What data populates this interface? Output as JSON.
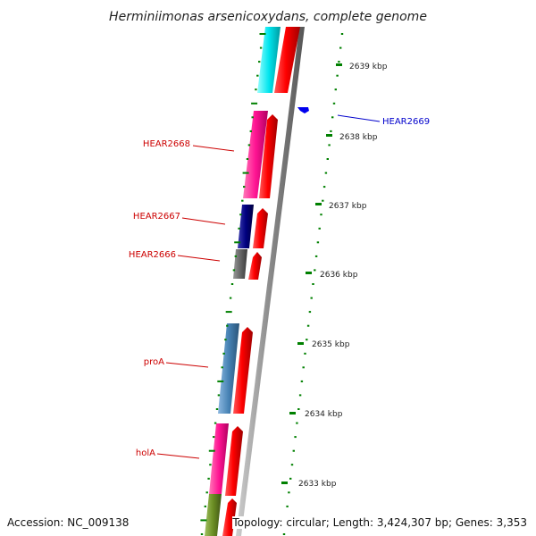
{
  "title": "Herminiimonas arsenicoxydans, complete genome",
  "footer": {
    "accession": "Accession: NC_009138",
    "topology": "Topology: circular; Length: 3,424,307 bp; Genes: 3,353"
  },
  "ticks": [
    {
      "label": "2639 kbp",
      "value": 2639
    },
    {
      "label": "2638 kbp",
      "value": 2638
    },
    {
      "label": "2637 kbp",
      "value": 2637
    },
    {
      "label": "2636 kbp",
      "value": 2636
    },
    {
      "label": "2635 kbp",
      "value": 2635
    },
    {
      "label": "2634 kbp",
      "value": 2634
    },
    {
      "label": "2633 kbp",
      "value": 2633
    }
  ],
  "genes": [
    {
      "label": "HEAR2669",
      "color": "#0000cc"
    },
    {
      "label": "HEAR2668",
      "color": "#cc0000"
    },
    {
      "label": "HEAR2667",
      "color": "#cc0000"
    },
    {
      "label": "HEAR2666",
      "color": "#cc0000"
    },
    {
      "label": "proA",
      "color": "#cc0000"
    },
    {
      "label": "holA",
      "color": "#cc0000"
    }
  ],
  "feature_colors": {
    "cds": "#ff0000",
    "cyan": "#00e5ee",
    "magenta": "#ff1493",
    "navy": "#000080",
    "gray": "#666666",
    "steelblue": "#4682b4",
    "olive": "#6b8e23",
    "backbone": "#999999",
    "tick": "#008000"
  }
}
